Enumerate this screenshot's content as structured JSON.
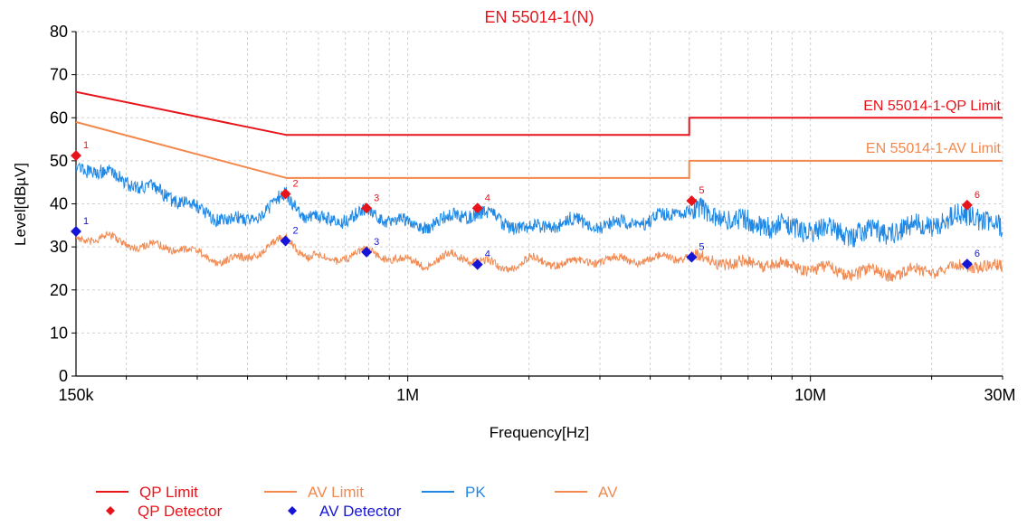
{
  "chart_data": {
    "type": "line",
    "title": "EN 55014-1(N)",
    "xlabel": "Frequency[Hz]",
    "ylabel": "Level[dBµV]",
    "xscale": "log",
    "xlim": [
      150000,
      30000000
    ],
    "ylim": [
      0,
      80
    ],
    "grid": true,
    "x_ticks": [
      {
        "value": 150000,
        "label": "150k"
      },
      {
        "value": 1000000,
        "label": "1M"
      },
      {
        "value": 10000000,
        "label": "10M"
      },
      {
        "value": 30000000,
        "label": "30M"
      }
    ],
    "y_ticks": [
      0,
      10,
      20,
      30,
      40,
      50,
      60,
      70,
      80
    ],
    "limit_labels": {
      "qp": "EN 55014-1-QP Limit",
      "av": "EN 55014-1-AV Limit"
    },
    "series": [
      {
        "name": "QP Limit",
        "color": "#e8141b",
        "x": [
          150000,
          500000,
          500000,
          5000000,
          5000000,
          30000000
        ],
        "y": [
          66,
          56,
          56,
          56,
          60,
          60
        ]
      },
      {
        "name": "AV Limit",
        "color": "#f4874b",
        "x": [
          150000,
          500000,
          500000,
          5000000,
          5000000,
          30000000
        ],
        "y": [
          59,
          46,
          46,
          46,
          50,
          50
        ]
      },
      {
        "name": "PK",
        "color": "#1f88e5",
        "x": [
          150000,
          180000,
          220000,
          270000,
          330000,
          390000,
          450000,
          500000,
          560000,
          650000,
          800000,
          950000,
          1100000,
          1300000,
          1500000,
          1700000,
          2000000,
          2500000,
          3000000,
          4000000,
          5000000,
          5500000,
          6500000,
          8000000,
          10000000,
          13000000,
          17000000,
          22000000,
          25000000,
          30000000
        ],
        "y": [
          49,
          47,
          44,
          41,
          37,
          36,
          39,
          42,
          37,
          36,
          38,
          36,
          35,
          37,
          38,
          36,
          34,
          36,
          35,
          36,
          39,
          38,
          36,
          35,
          34,
          33,
          34,
          36,
          38,
          34
        ]
      },
      {
        "name": "AV",
        "color": "#f08a52",
        "x": [
          150000,
          180000,
          220000,
          270000,
          330000,
          390000,
          450000,
          500000,
          560000,
          650000,
          800000,
          950000,
          1100000,
          1300000,
          1500000,
          1700000,
          2000000,
          2500000,
          3000000,
          4000000,
          5000000,
          5500000,
          6500000,
          8000000,
          10000000,
          13000000,
          17000000,
          22000000,
          25000000,
          30000000
        ],
        "y": [
          32,
          32,
          30,
          30,
          27,
          27,
          30,
          32,
          28,
          27,
          29,
          27,
          26,
          28,
          27,
          25,
          27,
          26,
          27,
          27,
          28,
          27,
          26,
          26,
          25,
          24,
          24,
          25,
          26,
          25
        ]
      }
    ],
    "qp_detector": {
      "name": "QP Detector",
      "color": "#e8141b",
      "points": [
        {
          "label": "1",
          "x": 150000,
          "y": 51.2
        },
        {
          "label": "2",
          "x": 497000,
          "y": 42.3
        },
        {
          "label": "3",
          "x": 790000,
          "y": 39.0
        },
        {
          "label": "4",
          "x": 1490000,
          "y": 39.0
        },
        {
          "label": "5",
          "x": 5070000,
          "y": 40.7
        },
        {
          "label": "6",
          "x": 24500000,
          "y": 39.7
        }
      ]
    },
    "av_detector": {
      "name": "AV Detector",
      "color": "#1515d8",
      "points": [
        {
          "label": "1",
          "x": 150000,
          "y": 33.6
        },
        {
          "label": "2",
          "x": 497000,
          "y": 31.4
        },
        {
          "label": "3",
          "x": 790000,
          "y": 28.8
        },
        {
          "label": "4",
          "x": 1490000,
          "y": 25.9
        },
        {
          "label": "5",
          "x": 5070000,
          "y": 27.6
        },
        {
          "label": "6",
          "x": 24500000,
          "y": 26.0
        }
      ]
    },
    "legend_position": "bottom-left",
    "legend": {
      "lines": [
        {
          "label": "QP Limit",
          "color": "#e8141b"
        },
        {
          "label": "AV Limit",
          "color": "#f4874b"
        },
        {
          "label": "PK",
          "color": "#1f88e5"
        },
        {
          "label": "AV",
          "color": "#f08a52"
        }
      ],
      "markers": [
        {
          "label": "QP Detector",
          "color": "#e8141b"
        },
        {
          "label": "AV Detector",
          "color": "#1515d8"
        }
      ]
    }
  }
}
